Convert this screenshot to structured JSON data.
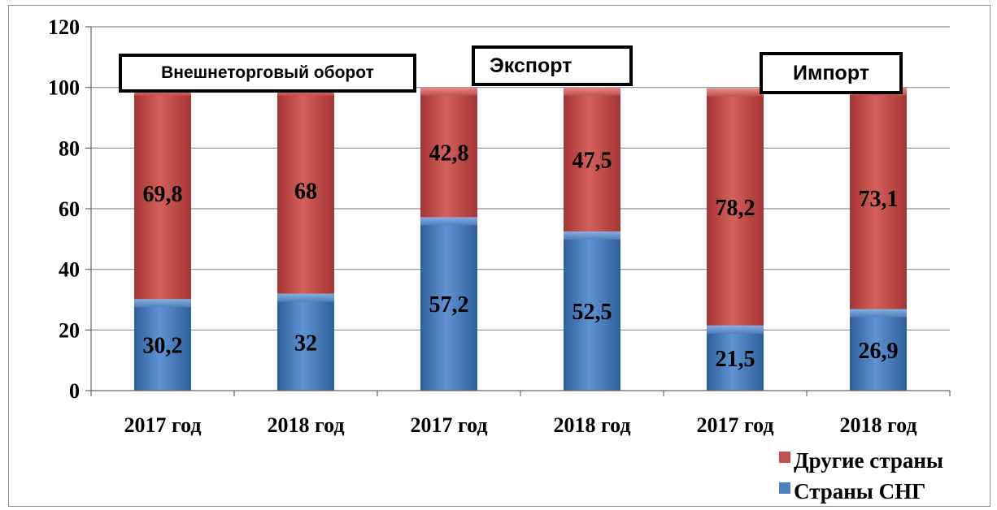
{
  "chart_data": {
    "type": "bar",
    "stacked": true,
    "categories": [
      "2017 год",
      "2018 год",
      "2017 год",
      "2018 год",
      "2017 год",
      "2018 год"
    ],
    "groups": [
      "Внешнеторговый оборот",
      "Экспорт",
      "Импорт"
    ],
    "series": [
      {
        "name": "Страны СНГ",
        "values": [
          30.2,
          32,
          57.2,
          52.5,
          21.5,
          26.9
        ],
        "labels": [
          "30,2",
          "32",
          "57,2",
          "52,5",
          "21,5",
          "26,9"
        ],
        "color": "#4f81bd"
      },
      {
        "name": "Другие страны",
        "values": [
          69.8,
          68,
          42.8,
          47.5,
          78.2,
          73.1
        ],
        "labels": [
          "69,8",
          "68",
          "42,8",
          "47,5",
          "78,2",
          "73,1"
        ],
        "color": "#c0504d"
      }
    ],
    "yticks": [
      "0",
      "20",
      "40",
      "60",
      "80",
      "100",
      "120"
    ],
    "ylim": [
      0,
      120
    ],
    "grid": true,
    "legend_position": "bottom-right"
  }
}
